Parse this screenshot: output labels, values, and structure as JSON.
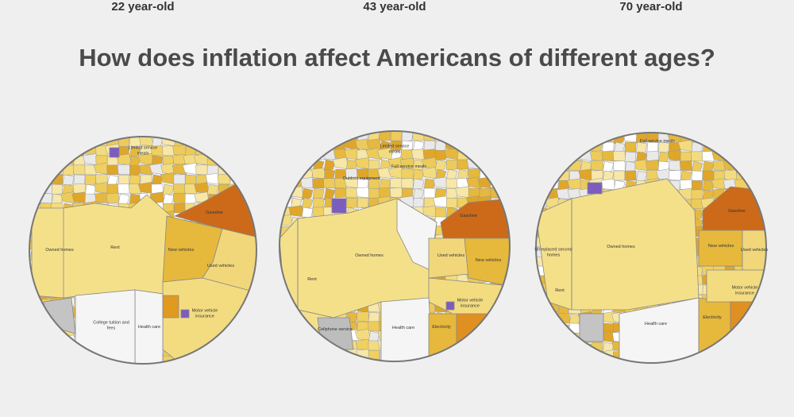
{
  "title": "How does inflation affect Americans of different ages?",
  "panels": [
    {
      "title": "22 year-old",
      "labels": [
        "Limited service meals",
        "Gasoline",
        "Owned homes",
        "Rent",
        "New vehicles",
        "Used vehicles",
        "Motor vehicle insurance",
        "College tuition and fees",
        "Health care"
      ]
    },
    {
      "title": "43 year-old",
      "labels": [
        "Limited service meals",
        "Full service meals",
        "Outdoor equipment",
        "Gasoline",
        "Owned homes",
        "Used vehicles",
        "New vehicles",
        "Rent",
        "Motor vehicle insurance",
        "Cellphone service",
        "Health care",
        "Electricity"
      ]
    },
    {
      "title": "70 year-old",
      "labels": [
        "Full service meals",
        "Gasoline",
        "Owned homes",
        "New vehicles",
        "Used vehicles",
        "Unreplaced second homes",
        "Rent",
        "Motor vehicle insurance",
        "Electricity",
        "Health care"
      ]
    }
  ]
}
